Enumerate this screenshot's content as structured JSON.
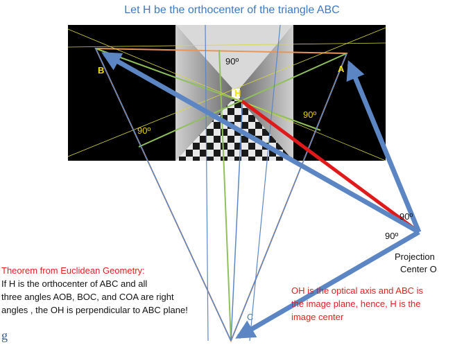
{
  "title": "Let H be the orthocenter of the triangle ABC",
  "vertices": {
    "a": "A",
    "b": "B",
    "c": "C",
    "h": "H"
  },
  "angles": {
    "top": "90º",
    "right": "90º",
    "left": "90º",
    "center_o_1": "90º",
    "center_o_2": "90º"
  },
  "projection_center": [
    "Projection",
    "Center O"
  ],
  "theorem": {
    "heading": "Theorem from Euclidean Geometry:",
    "lines": [
      "If H is the orthocenter of ABC and all",
      "three angles AOB, BOC, and COA are right",
      "angles , the OH is perpendicular to ABC plane!"
    ]
  },
  "optical_axis_note": [
    "OH is the optical axis and ABC is",
    "the image plane, hence, H is the",
    "image center"
  ],
  "stray_glyph": "g",
  "colors": {
    "title": "#3d78c4",
    "arrow": "#5b86c3",
    "triangle": "#e8955a",
    "altitude": "#8fc05a",
    "optical_axis": "#e01a1a",
    "vertex_label": "#f2e000"
  }
}
